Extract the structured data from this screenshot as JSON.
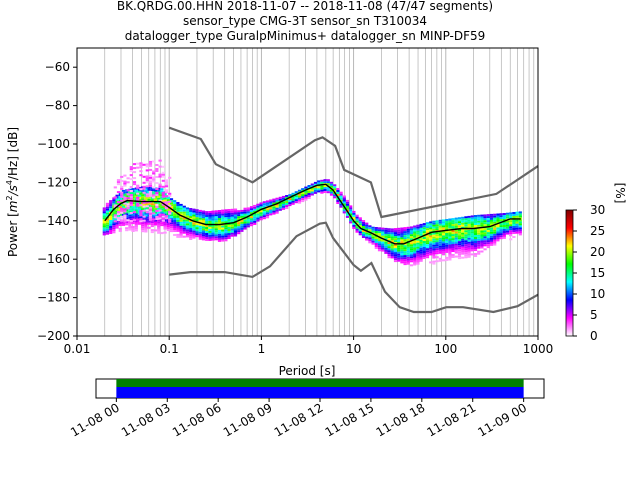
{
  "chart_data": [
    {
      "type": "heatmap",
      "title_lines": [
        "BK.QRDG.00.HHN   2018-11-07 -- 2018-11-08  (47/47 segments)",
        "sensor_type CMG-3T sensor_sn T310034",
        "datalogger_type GuralpMinimus+ datalogger_sn MINP-DF59"
      ],
      "xlabel": "Period [s]",
      "ylabel_parts": {
        "pre": "Power [",
        "m": "m",
        "m_exp": "2",
        "slash": "/s",
        "s_exp": "4",
        "end": "/Hz] [dB]"
      },
      "x_scale": "log",
      "xlim": [
        0.01,
        1000
      ],
      "ylim": [
        -200,
        -50
      ],
      "x_ticks": [
        0.01,
        0.1,
        1,
        10,
        100,
        1000
      ],
      "x_tick_labels": [
        "0.01",
        "0.1",
        "1",
        "10",
        "100",
        "1000"
      ],
      "y_ticks": [
        -200,
        -180,
        -160,
        -140,
        -120,
        -100,
        -80,
        -60
      ],
      "y_tick_labels": [
        "−200",
        "−180",
        "−160",
        "−140",
        "−120",
        "−100",
        "−80",
        "−60"
      ],
      "grid_x": true,
      "noise_model_high": [
        [
          0.1,
          -91.5
        ],
        [
          0.22,
          -97.4
        ],
        [
          0.32,
          -110.5
        ],
        [
          0.8,
          -120
        ],
        [
          3.8,
          -98
        ],
        [
          4.6,
          -96.5
        ],
        [
          6.3,
          -101
        ],
        [
          7.9,
          -113.5
        ],
        [
          15.4,
          -120
        ],
        [
          20,
          -138
        ],
        [
          354,
          -126
        ],
        [
          1000,
          -111.5
        ]
      ],
      "noise_model_low": [
        [
          0.1,
          -168
        ],
        [
          0.17,
          -166.7
        ],
        [
          0.4,
          -166.7
        ],
        [
          0.8,
          -169.2
        ],
        [
          1.24,
          -163.7
        ],
        [
          2.4,
          -148
        ],
        [
          4.3,
          -141.5
        ],
        [
          5,
          -141
        ],
        [
          6,
          -149
        ],
        [
          10,
          -163
        ],
        [
          12,
          -166
        ],
        [
          15.6,
          -162
        ],
        [
          21.9,
          -177
        ],
        [
          31.6,
          -185
        ],
        [
          45,
          -187.5
        ],
        [
          70,
          -187.5
        ],
        [
          101,
          -185
        ],
        [
          154,
          -185
        ],
        [
          328,
          -187.5
        ],
        [
          600,
          -184.5
        ],
        [
          1000,
          -178.5
        ]
      ],
      "mean_curve": [
        [
          0.02,
          -140
        ],
        [
          0.025,
          -134
        ],
        [
          0.03,
          -131
        ],
        [
          0.035,
          -129.5
        ],
        [
          0.05,
          -130
        ],
        [
          0.08,
          -130
        ],
        [
          0.1,
          -133
        ],
        [
          0.13,
          -137
        ],
        [
          0.18,
          -140
        ],
        [
          0.25,
          -142
        ],
        [
          0.35,
          -142
        ],
        [
          0.5,
          -141
        ],
        [
          0.7,
          -138
        ],
        [
          1,
          -134
        ],
        [
          1.5,
          -131
        ],
        [
          2,
          -128
        ],
        [
          3,
          -124
        ],
        [
          4,
          -121.5
        ],
        [
          5,
          -121
        ],
        [
          6,
          -124
        ],
        [
          8,
          -133
        ],
        [
          10,
          -140
        ],
        [
          12,
          -144
        ],
        [
          15,
          -146
        ],
        [
          20,
          -149
        ],
        [
          28,
          -152
        ],
        [
          35,
          -152
        ],
        [
          50,
          -149
        ],
        [
          70,
          -146
        ],
        [
          100,
          -145
        ],
        [
          150,
          -144
        ],
        [
          200,
          -144
        ],
        [
          300,
          -143
        ],
        [
          500,
          -139
        ],
        [
          650,
          -139
        ]
      ],
      "psd_band": [
        [
          0.019,
          -147,
          -132
        ],
        [
          0.03,
          -145,
          -124
        ],
        [
          0.05,
          -145,
          -122
        ],
        [
          0.08,
          -146,
          -123
        ],
        [
          0.1,
          -147,
          -128
        ],
        [
          0.15,
          -149,
          -133
        ],
        [
          0.25,
          -150,
          -135
        ],
        [
          0.4,
          -150,
          -134
        ],
        [
          0.7,
          -143,
          -133
        ],
        [
          1,
          -139,
          -130
        ],
        [
          2,
          -132,
          -126
        ],
        [
          4,
          -126,
          -119
        ],
        [
          5,
          -125,
          -118
        ],
        [
          6,
          -128,
          -121
        ],
        [
          8,
          -137,
          -128
        ],
        [
          10,
          -145,
          -136
        ],
        [
          15,
          -152,
          -143
        ],
        [
          25,
          -160,
          -144
        ],
        [
          40,
          -163,
          -143
        ],
        [
          70,
          -162,
          -140
        ],
        [
          100,
          -160,
          -139
        ],
        [
          200,
          -158,
          -137
        ],
        [
          400,
          -150,
          -136
        ],
        [
          650,
          -148,
          -135
        ]
      ],
      "scatter_cloud_band": [
        [
          0.025,
          -140,
          -120
        ],
        [
          0.04,
          -140,
          -110
        ],
        [
          0.08,
          -140,
          -108
        ],
        [
          0.1,
          -140,
          -116
        ]
      ],
      "colorbar": {
        "label": "[%]",
        "range": [
          0,
          30
        ],
        "ticks": [
          0,
          5,
          10,
          15,
          20,
          25,
          30
        ],
        "stops": [
          "#ffffff",
          "#ff00ff",
          "#0000ff",
          "#00ffff",
          "#00ff00",
          "#ffff00",
          "#ff0000",
          "#800000"
        ]
      }
    },
    {
      "type": "bar",
      "name": "data coverage",
      "tick_labels": [
        "11-08 00",
        "11-08 03",
        "11-08 06",
        "11-08 09",
        "11-08 12",
        "11-08 15",
        "11-08 18",
        "11-08 21",
        "11-09 00"
      ],
      "tick_hours": [
        0,
        3,
        6,
        9,
        12,
        15,
        18,
        21,
        24
      ],
      "xlim_hours": [
        -1.2,
        25.2
      ],
      "coverage_hours": [
        0,
        24
      ],
      "colors": {
        "top_strip": "#008000",
        "main": "#0000ff"
      }
    }
  ]
}
